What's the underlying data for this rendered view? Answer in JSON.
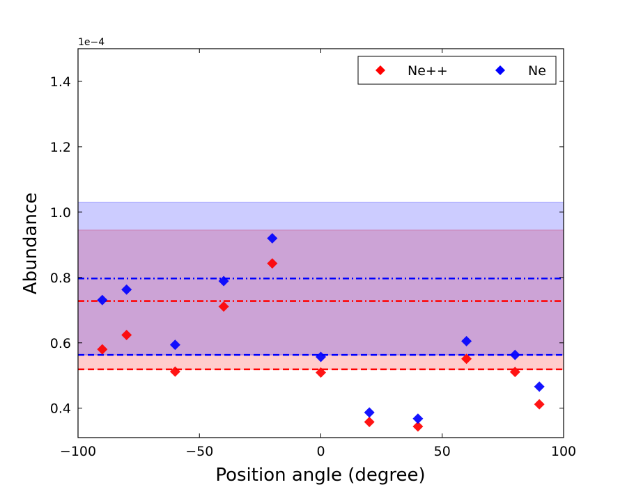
{
  "chart_data": {
    "type": "scatter",
    "xlabel": "Position angle (degree)",
    "ylabel": "Abundance",
    "y_offset_label": "1e−4",
    "xlim": [
      -100,
      100
    ],
    "ylim": [
      0.31,
      1.5
    ],
    "x_ticks": [
      -100,
      -50,
      0,
      50,
      100
    ],
    "x_tick_labels": [
      "−100",
      "−50",
      "0",
      "50",
      "100"
    ],
    "y_ticks": [
      0.4,
      0.6,
      0.8,
      1.0,
      1.2,
      1.4
    ],
    "y_tick_labels": [
      "0.4",
      "0.6",
      "0.8",
      "1.0",
      "1.2",
      "1.4"
    ],
    "grid": false,
    "legend_position": "top-right",
    "series": [
      {
        "name": "Ne++",
        "color": "#ff0000",
        "marker": "diamond",
        "x": [
          -90,
          -80,
          -60,
          -40,
          -20,
          0,
          20,
          40,
          60,
          80,
          90
        ],
        "y": [
          0.58,
          0.624,
          0.512,
          0.711,
          0.843,
          0.509,
          0.358,
          0.344,
          0.551,
          0.511,
          0.412
        ],
        "dashed_line": 0.519,
        "dashdot_line": 0.728,
        "band": [
          0.519,
          0.945
        ]
      },
      {
        "name": "Ne",
        "color": "#0000ff",
        "marker": "diamond",
        "x": [
          -90,
          -80,
          -60,
          -40,
          -20,
          0,
          20,
          40,
          60,
          80,
          90
        ],
        "y": [
          0.731,
          0.763,
          0.594,
          0.789,
          0.92,
          0.557,
          0.387,
          0.368,
          0.605,
          0.563,
          0.466
        ],
        "dashed_line": 0.563,
        "dashdot_line": 0.797,
        "band": [
          0.563,
          1.03
        ]
      }
    ]
  }
}
